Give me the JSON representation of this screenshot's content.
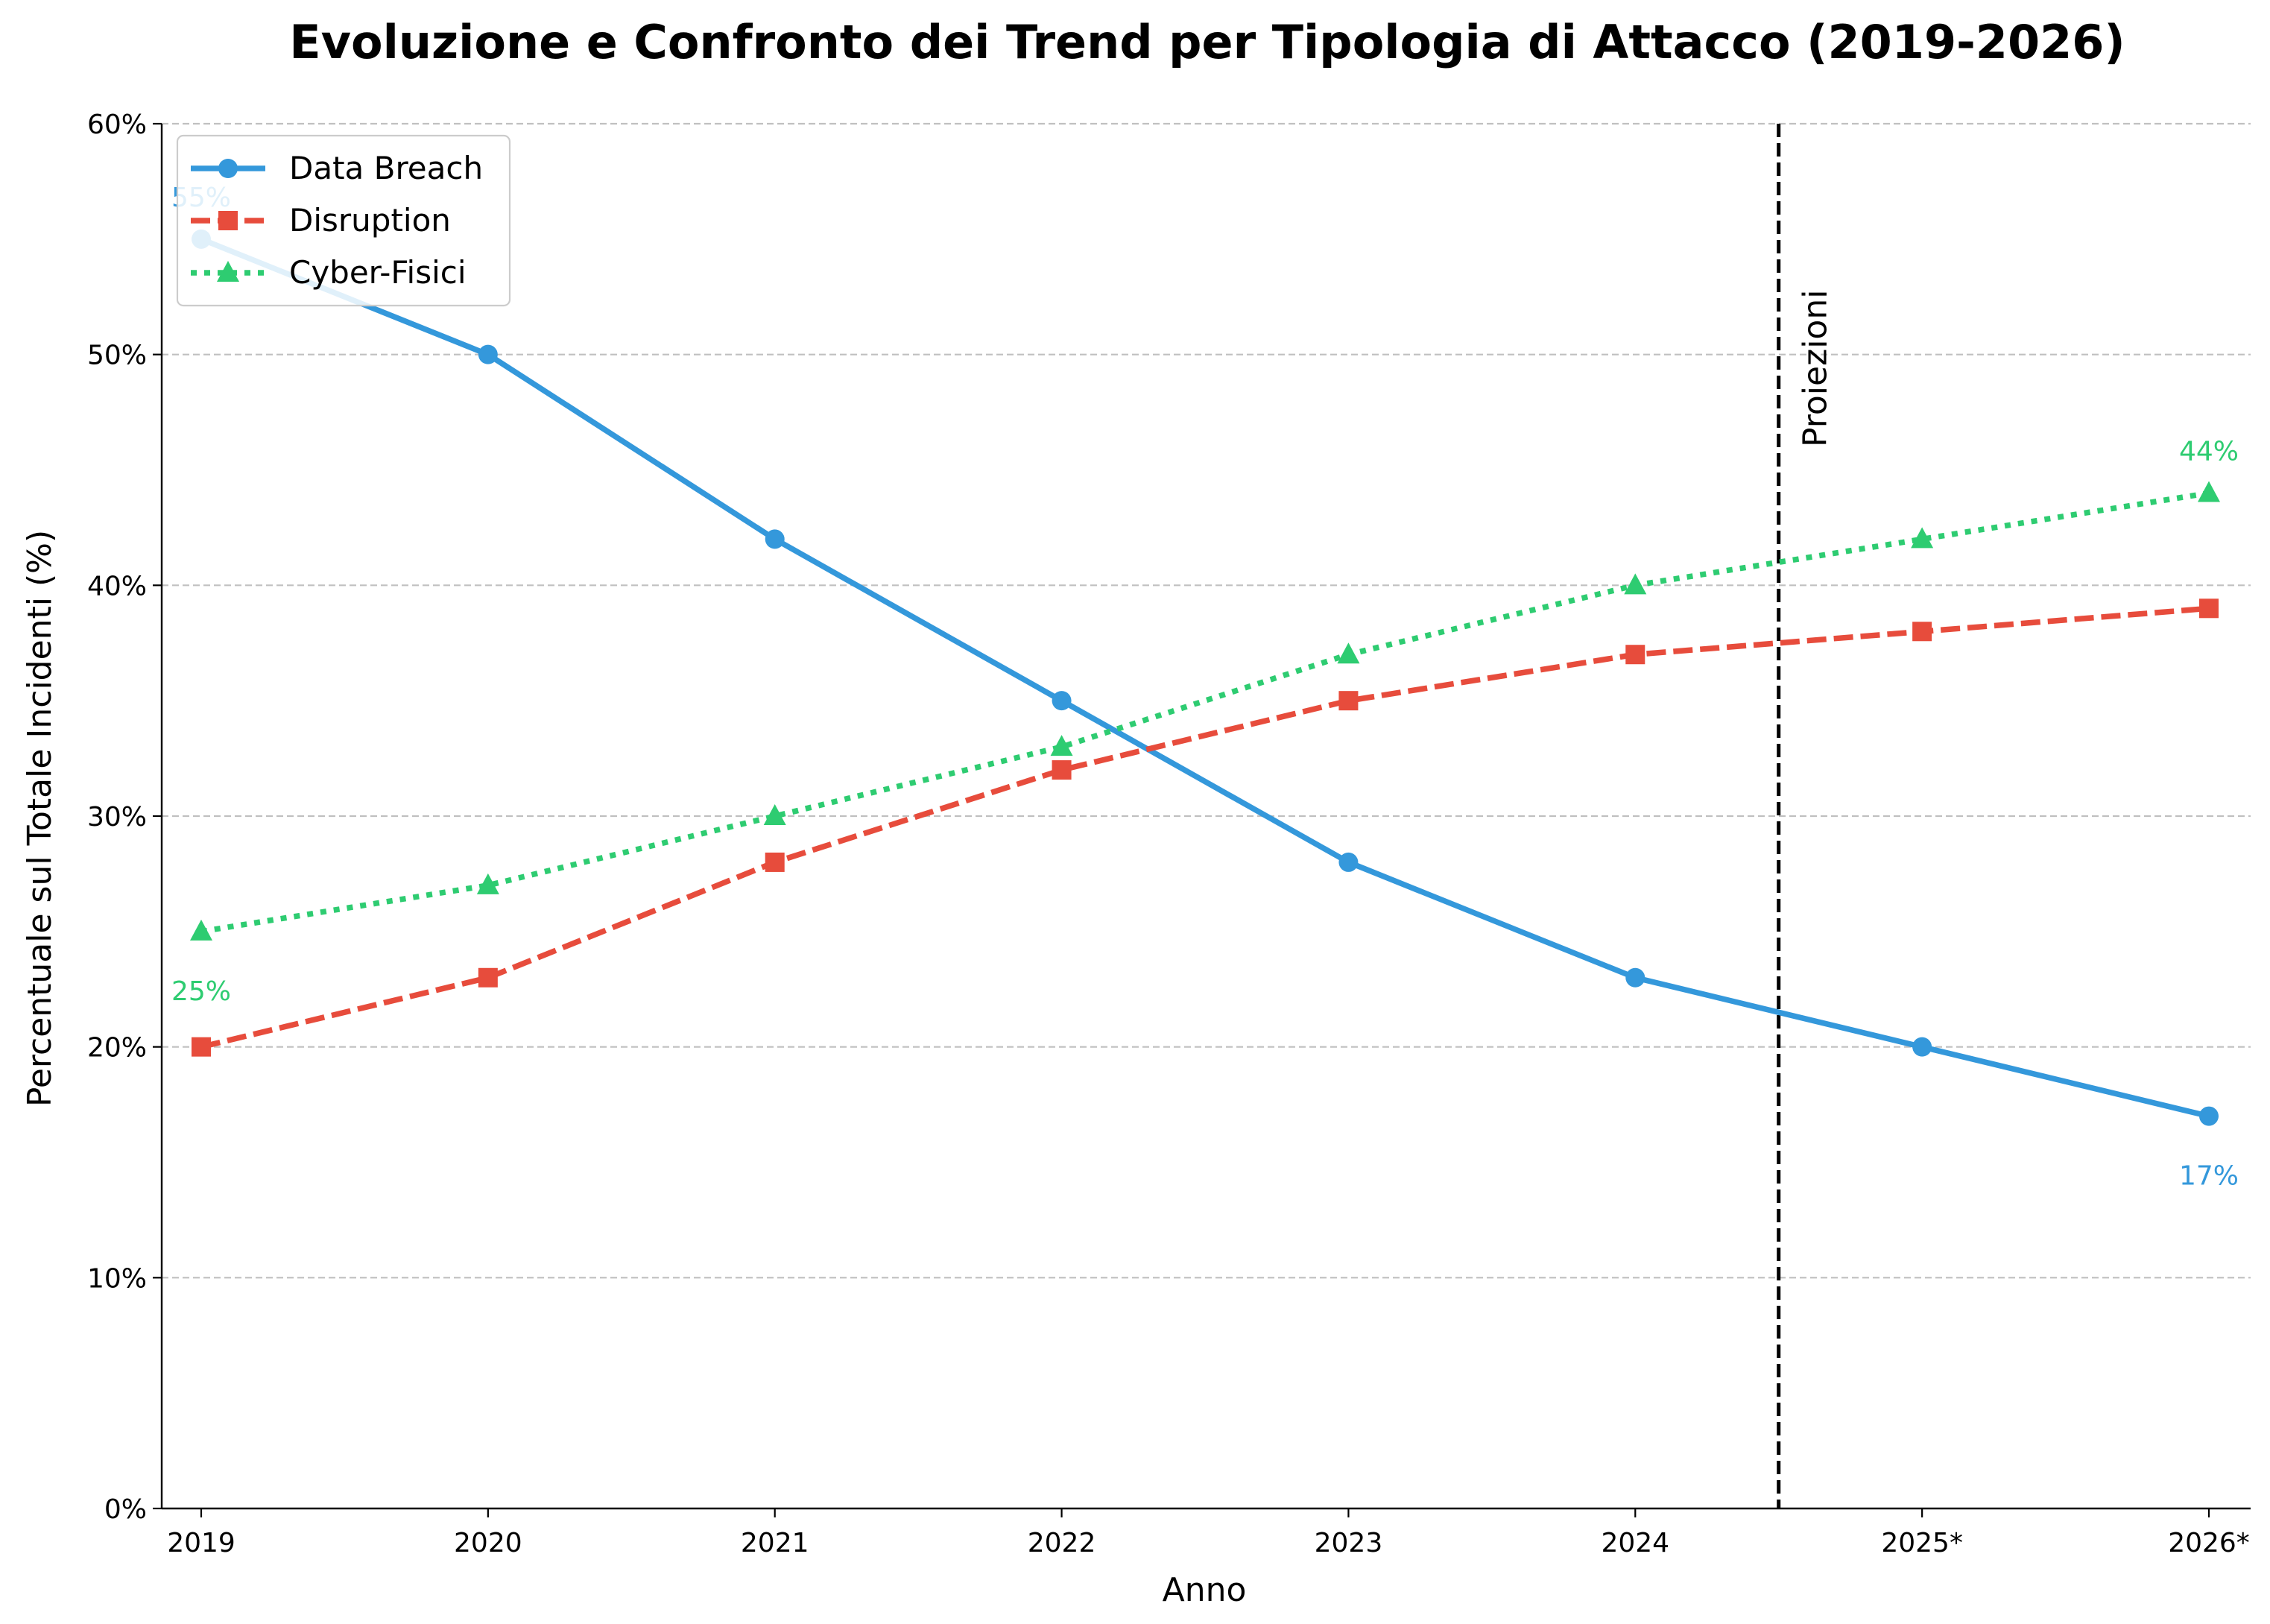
{
  "chart_data": {
    "type": "line",
    "title": "Evoluzione e Confronto dei Trend per Tipologia di Attacco (2019-2026)",
    "xlabel": "Anno",
    "ylabel": "Percentuale sul Totale Incidenti (%)",
    "categories": [
      "2019",
      "2020",
      "2021",
      "2022",
      "2023",
      "2024",
      "2025*",
      "2026*"
    ],
    "ylim": [
      0,
      60
    ],
    "yticks": [
      0,
      10,
      20,
      30,
      40,
      50,
      60
    ],
    "ytick_labels": [
      "0%",
      "10%",
      "20%",
      "30%",
      "40%",
      "50%",
      "60%"
    ],
    "grid": "horizontal dashed",
    "legend": "top-left",
    "series": [
      {
        "name": "Data Breach",
        "values": [
          55,
          50,
          42,
          35,
          28,
          23,
          20,
          17
        ],
        "color": "#3498db",
        "style": "solid",
        "marker": "circle"
      },
      {
        "name": "Disruption",
        "values": [
          20,
          23,
          28,
          32,
          35,
          37,
          38,
          39
        ],
        "color": "#e74c3c",
        "style": "dashed",
        "marker": "square"
      },
      {
        "name": "Cyber-Fisici",
        "values": [
          25,
          27,
          30,
          33,
          37,
          40,
          42,
          44
        ],
        "color": "#2ecc71",
        "style": "dotted",
        "marker": "triangle"
      }
    ],
    "projection_line": {
      "x_between": [
        "2024",
        "2025*"
      ],
      "label": "Proiezioni"
    },
    "annotations": [
      {
        "text": "55%",
        "series": "Data Breach",
        "category": "2019",
        "color": "#3498db"
      },
      {
        "text": "17%",
        "series": "Data Breach",
        "category": "2026*",
        "color": "#3498db"
      },
      {
        "text": "25%",
        "series": "Cyber-Fisici",
        "category": "2019",
        "color": "#2ecc71"
      },
      {
        "text": "44%",
        "series": "Cyber-Fisici",
        "category": "2026*",
        "color": "#2ecc71"
      }
    ]
  }
}
